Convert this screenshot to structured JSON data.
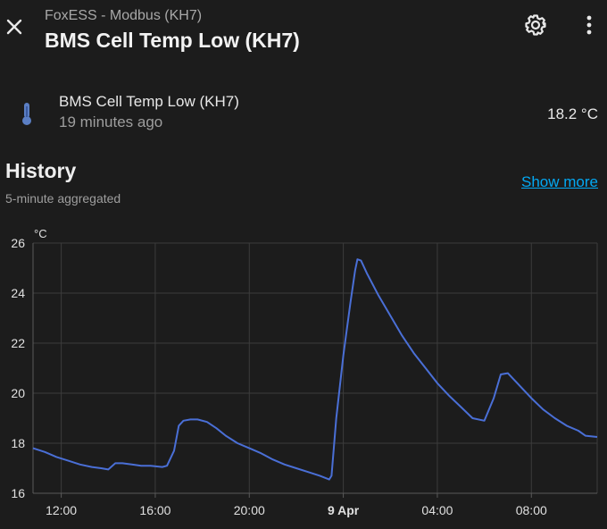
{
  "header": {
    "breadcrumb": "FoxESS - Modbus (KH7)",
    "title": "BMS Cell Temp Low (KH7)",
    "close_icon": "close-icon",
    "settings_icon": "gear-icon",
    "more_icon": "more-vertical-icon"
  },
  "entity": {
    "icon": "thermometer-icon",
    "name": "BMS Cell Temp Low (KH7)",
    "last_changed": "19 minutes ago",
    "state": "18.2 °C"
  },
  "history": {
    "title": "History",
    "subtitle": "5-minute aggregated",
    "show_more": "Show more"
  },
  "colors": {
    "background": "#1c1c1c",
    "line": "#4a6fd6",
    "accent_link": "#03a9f4",
    "grid": "#3c3c3c"
  },
  "chart_data": {
    "type": "line",
    "unit": "°C",
    "ylim": [
      16,
      26
    ],
    "yticks": [
      "16",
      "18",
      "20",
      "22",
      "24",
      "26"
    ],
    "xlim": [
      10.8,
      34.8
    ],
    "xticks": [
      {
        "x": 12,
        "label": "12:00",
        "bold": false
      },
      {
        "x": 16,
        "label": "16:00",
        "bold": false
      },
      {
        "x": 20,
        "label": "20:00",
        "bold": false
      },
      {
        "x": 24,
        "label": "9 Apr",
        "bold": true
      },
      {
        "x": 28,
        "label": "04:00",
        "bold": false
      },
      {
        "x": 32,
        "label": "08:00",
        "bold": false
      }
    ],
    "grid": true,
    "series": [
      {
        "x": [
          10.8,
          11.3,
          11.8,
          12.3,
          12.8,
          13.3,
          13.7,
          14.0,
          14.3,
          14.6,
          15.0,
          15.4,
          15.8,
          16.3,
          16.5,
          16.8,
          17.0,
          17.2,
          17.5,
          17.8,
          18.2,
          18.6,
          19.0,
          19.5,
          20.0,
          20.5,
          21.0,
          21.5,
          22.0,
          22.5,
          23.0,
          23.4,
          23.5,
          23.7,
          24.0,
          24.3,
          24.5,
          24.6,
          24.75,
          25.0,
          25.5,
          26.0,
          26.5,
          27.0,
          27.5,
          28.0,
          28.5,
          29.0,
          29.5,
          30.0,
          30.4,
          30.7,
          31.0,
          31.5,
          32.0,
          32.5,
          33.0,
          33.5,
          34.0,
          34.3,
          34.8
        ],
        "y": [
          17.8,
          17.65,
          17.45,
          17.3,
          17.15,
          17.05,
          17.0,
          16.95,
          17.2,
          17.2,
          17.15,
          17.1,
          17.1,
          17.05,
          17.1,
          17.7,
          18.7,
          18.9,
          18.95,
          18.95,
          18.85,
          18.6,
          18.3,
          18.0,
          17.8,
          17.6,
          17.35,
          17.15,
          17.0,
          16.85,
          16.7,
          16.55,
          16.7,
          19.0,
          21.5,
          23.6,
          24.9,
          25.35,
          25.3,
          24.8,
          23.9,
          23.1,
          22.3,
          21.6,
          21.0,
          20.4,
          19.9,
          19.45,
          19.0,
          18.9,
          19.8,
          20.75,
          20.8,
          20.3,
          19.8,
          19.35,
          19.0,
          18.7,
          18.5,
          18.3,
          18.25
        ]
      }
    ]
  }
}
